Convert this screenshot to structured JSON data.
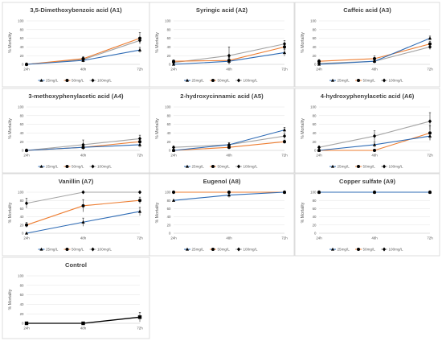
{
  "colors": {
    "25mg/L": "#2e6bb5",
    "50mg/L": "#ed7d31",
    "100mg/L": "#a5a5a5",
    "markers": "#000000",
    "control": "#000000"
  },
  "chart_data": [
    {
      "type": "line",
      "title": "3,5-Dimethoxybenzoic acid (A1)",
      "ylabel": "% Mortality",
      "ylim": [
        0,
        100
      ],
      "yticks": [
        0,
        20,
        40,
        60,
        80,
        100
      ],
      "categories": [
        "24h",
        "48h",
        "72h"
      ],
      "legend": "bottom",
      "series": [
        {
          "name": "25mg/L",
          "values": [
            0,
            9,
            33
          ],
          "errors": [
            0,
            4,
            6
          ]
        },
        {
          "name": "50mg/L",
          "values": [
            0,
            13,
            60
          ],
          "errors": [
            0,
            5,
            13
          ]
        },
        {
          "name": "100mg/L",
          "values": [
            0,
            11,
            55
          ],
          "errors": [
            0,
            4,
            6
          ]
        }
      ]
    },
    {
      "type": "line",
      "title": "Syringic acid (A2)",
      "ylabel": "% Mortality",
      "ylim": [
        0,
        100
      ],
      "yticks": [
        0,
        20,
        40,
        60,
        80,
        100
      ],
      "categories": [
        "24h",
        "48h",
        "72h"
      ],
      "legend": "bottom",
      "series": [
        {
          "name": "25mg/L",
          "values": [
            0,
            7,
            27
          ],
          "errors": [
            0,
            6,
            8
          ]
        },
        {
          "name": "50mg/L",
          "values": [
            7,
            9,
            40
          ],
          "errors": [
            3,
            7,
            8
          ]
        },
        {
          "name": "100mg/L",
          "values": [
            4,
            20,
            47
          ],
          "errors": [
            3,
            20,
            8
          ]
        }
      ]
    },
    {
      "type": "line",
      "title": "Caffeic acid (A3)",
      "ylabel": "% Mortality",
      "ylim": [
        0,
        100
      ],
      "yticks": [
        0,
        20,
        40,
        60,
        80,
        100
      ],
      "categories": [
        "24h",
        "48h",
        "72h"
      ],
      "legend": "bottom",
      "series": [
        {
          "name": "25mg/L",
          "values": [
            0,
            7,
            60
          ],
          "errors": [
            0,
            4,
            5
          ]
        },
        {
          "name": "50mg/L",
          "values": [
            7,
            13,
            47
          ],
          "errors": [
            4,
            6,
            6
          ]
        },
        {
          "name": "100mg/L",
          "values": [
            2,
            7,
            40
          ],
          "errors": [
            2,
            4,
            6
          ]
        }
      ]
    },
    {
      "type": "line",
      "title": "3-methoxyphenylacetic acid (A4)",
      "ylabel": "% Mortality",
      "ylim": [
        0,
        100
      ],
      "yticks": [
        0,
        20,
        40,
        60,
        80,
        100
      ],
      "categories": [
        "24h",
        "48h",
        "72h"
      ],
      "legend": "bottom",
      "series": [
        {
          "name": "25mg/L",
          "values": [
            0,
            7,
            13
          ],
          "errors": [
            0,
            4,
            6
          ]
        },
        {
          "name": "50mg/L",
          "values": [
            0,
            7,
            20
          ],
          "errors": [
            0,
            5,
            8
          ]
        },
        {
          "name": "100mg/L",
          "values": [
            0,
            13,
            27
          ],
          "errors": [
            0,
            11,
            8
          ]
        }
      ]
    },
    {
      "type": "line",
      "title": "2-hydroxycinnamic acid (A5)",
      "ylabel": "% Mortality",
      "ylim": [
        0,
        100
      ],
      "yticks": [
        0,
        20,
        40,
        60,
        80,
        100
      ],
      "categories": [
        "24h",
        "48h",
        "72h"
      ],
      "legend": "bottom",
      "series": [
        {
          "name": "25mg/L",
          "values": [
            0,
            13,
            47
          ],
          "errors": [
            0,
            5,
            6
          ]
        },
        {
          "name": "50mg/L",
          "values": [
            0,
            7,
            20
          ],
          "errors": [
            0,
            4,
            4
          ]
        },
        {
          "name": "100mg/L",
          "values": [
            7,
            13,
            33
          ],
          "errors": [
            3,
            5,
            6
          ]
        }
      ]
    },
    {
      "type": "line",
      "title": "4-hydroxyphenylacetic acid (A6)",
      "ylabel": "% Mortality",
      "ylim": [
        0,
        100
      ],
      "yticks": [
        0,
        20,
        40,
        60,
        80,
        100
      ],
      "categories": [
        "24h",
        "48h",
        "72h"
      ],
      "legend": "bottom",
      "series": [
        {
          "name": "25mg/L",
          "values": [
            0,
            13,
            33
          ],
          "errors": [
            0,
            6,
            8
          ]
        },
        {
          "name": "50mg/L",
          "values": [
            0,
            0,
            40
          ],
          "errors": [
            0,
            0,
            17
          ]
        },
        {
          "name": "100mg/L",
          "values": [
            7,
            33,
            67
          ],
          "errors": [
            3,
            12,
            20
          ]
        }
      ]
    },
    {
      "type": "line",
      "title": "Vanillin (A7)",
      "ylabel": "% Mortality",
      "ylim": [
        0,
        100
      ],
      "yticks": [
        0,
        20,
        40,
        60,
        80,
        100
      ],
      "categories": [
        "24h",
        "48h",
        "72h"
      ],
      "legend": "bottom",
      "series": [
        {
          "name": "25mg/L",
          "values": [
            0,
            27,
            53
          ],
          "errors": [
            0,
            10,
            10
          ]
        },
        {
          "name": "50mg/L",
          "values": [
            20,
            67,
            80
          ],
          "errors": [
            6,
            15,
            8
          ]
        },
        {
          "name": "100mg/L",
          "values": [
            73,
            100,
            100
          ],
          "errors": [
            12,
            0,
            0
          ]
        }
      ]
    },
    {
      "type": "line",
      "title": "Eugenol (A8)",
      "ylabel": "% Mortality",
      "ylim": [
        0,
        100
      ],
      "yticks": [
        0,
        20,
        40,
        60,
        80,
        100
      ],
      "categories": [
        "24h",
        "48h",
        "72h"
      ],
      "legend": "bottom",
      "series": [
        {
          "name": "25mg/L",
          "values": [
            80,
            93,
            100
          ],
          "errors": [
            0,
            6,
            0
          ]
        },
        {
          "name": "50mg/L",
          "values": [
            100,
            100,
            100
          ],
          "errors": [
            0,
            0,
            0
          ]
        },
        {
          "name": "100mg/L",
          "values": [
            100,
            100,
            100
          ],
          "errors": [
            0,
            0,
            0
          ]
        }
      ]
    },
    {
      "type": "line",
      "title": "Copper sulfate (A9)",
      "ylabel": "% Mortality",
      "ylim": [
        0,
        100
      ],
      "yticks": [
        0,
        20,
        40,
        60,
        80,
        100
      ],
      "categories": [
        "24h",
        "48h",
        "72h"
      ],
      "legend": "bottom",
      "series": [
        {
          "name": "25mg/L",
          "values": [
            100,
            100,
            100
          ],
          "errors": [
            0,
            0,
            0
          ]
        },
        {
          "name": "50mg/L",
          "values": [
            100,
            100,
            100
          ],
          "errors": [
            0,
            0,
            0
          ]
        },
        {
          "name": "100mg/L",
          "values": [
            100,
            100,
            100
          ],
          "errors": [
            0,
            0,
            0
          ]
        }
      ]
    },
    {
      "type": "line",
      "title": "Control",
      "ylabel": "% Mortality",
      "ylim": [
        0,
        100
      ],
      "yticks": [
        0,
        20,
        40,
        60,
        80,
        100
      ],
      "categories": [
        "24h",
        "48h",
        "72h"
      ],
      "series": [
        {
          "values": [
            0,
            0,
            13
          ],
          "errors": [
            0,
            0,
            10
          ]
        }
      ]
    }
  ]
}
